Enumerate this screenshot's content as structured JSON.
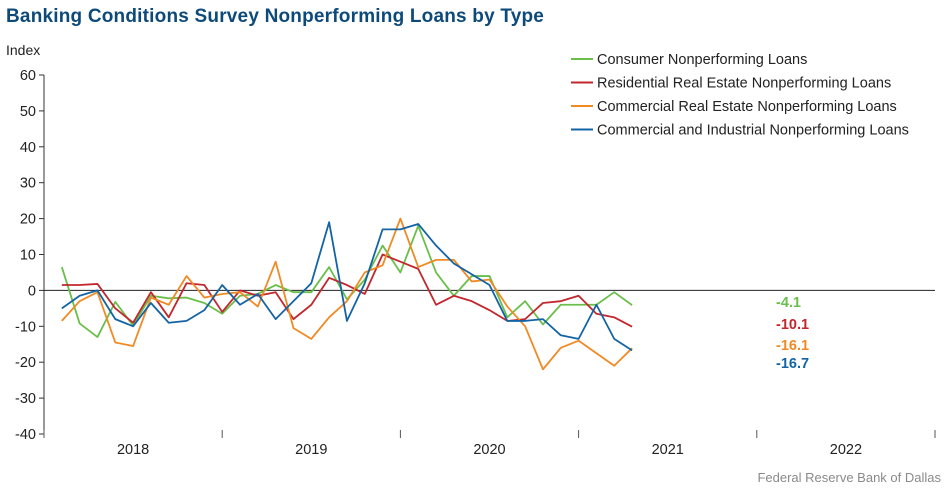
{
  "title": "Banking Conditions Survey Nonperforming Loans by Type",
  "source": "Federal Reserve Bank of Dallas",
  "chart_data": {
    "type": "line",
    "title": "Banking Conditions Survey Nonperforming Loans by Type",
    "ylabel": "Index",
    "xlabel": "",
    "ylim": [
      -40,
      60
    ],
    "yticks": [
      60,
      50,
      40,
      30,
      20,
      10,
      0,
      -10,
      -20,
      -30,
      -40
    ],
    "xlim": [
      0,
      33
    ],
    "year_labels": [
      {
        "label": "2018",
        "pos": 5
      },
      {
        "label": "2019",
        "pos": 15
      },
      {
        "label": "2020",
        "pos": 25
      },
      {
        "label": "2021",
        "pos": 35
      },
      {
        "label": "2022",
        "pos": 45
      }
    ],
    "year_boundaries": [
      0,
      10,
      20,
      30,
      40,
      50
    ],
    "x_scale": 0.5,
    "legend_position": "top-right",
    "series": [
      {
        "name": "Consumer Nonperforming Loans",
        "color": "#6abf4b",
        "end_label": "-4.1",
        "values": [
          6.5,
          -9.2,
          -13,
          -3.2,
          -9.8,
          -1.5,
          -2.2,
          -2,
          -3.5,
          -6.5,
          -1.5,
          -1,
          1.5,
          -0.5,
          -0.5,
          6.5,
          -2.5,
          3,
          12.5,
          5,
          18,
          5,
          -1.5,
          4,
          4,
          -7.5,
          -3,
          -9.5,
          -4,
          -4,
          -4,
          -0.5,
          -4.1
        ]
      },
      {
        "name": "Residential Real Estate Nonperforming Loans",
        "color": "#c1272d",
        "end_label": "-10.1",
        "values": [
          1.5,
          1.5,
          1.8,
          -5,
          -9,
          -0.5,
          -7.5,
          2,
          1.5,
          -6,
          0,
          -1.5,
          -0.5,
          -8,
          -4,
          3.5,
          1.5,
          -1,
          10,
          8,
          6,
          -4,
          -1.5,
          -3,
          -5.5,
          -8.5,
          -8,
          -3.5,
          -3,
          -1.5,
          -6.5,
          -7.5,
          -10.1
        ]
      },
      {
        "name": "Commercial Real Estate Nonperforming Loans",
        "color": "#f08a24",
        "end_label": "-16.1",
        "values": [
          -8.5,
          -3,
          -0.5,
          -14.5,
          -15.5,
          -2,
          -4,
          4,
          -2,
          -1,
          -0.5,
          -4.5,
          8,
          -10.5,
          -13.5,
          -7.5,
          -3,
          5,
          7,
          20,
          6.5,
          8.5,
          8.5,
          2.5,
          3,
          -4.5,
          -10,
          -22,
          -16,
          -14,
          -17.5,
          -21,
          -16.1
        ]
      },
      {
        "name": "Commercial and Industrial Nonperforming Loans",
        "color": "#1464a5",
        "end_label": "-16.7",
        "values": [
          -5,
          -1.5,
          0,
          -8,
          -10,
          -3.5,
          -9,
          -8.5,
          -5.5,
          1.5,
          -4,
          -1,
          -8,
          -3,
          2,
          19,
          -8.5,
          2,
          17,
          17,
          18.5,
          12.5,
          7.5,
          4.5,
          1.5,
          -8.5,
          -8.5,
          -8,
          -12.5,
          -13.5,
          -4,
          -13.5,
          -16.7
        ]
      }
    ]
  }
}
